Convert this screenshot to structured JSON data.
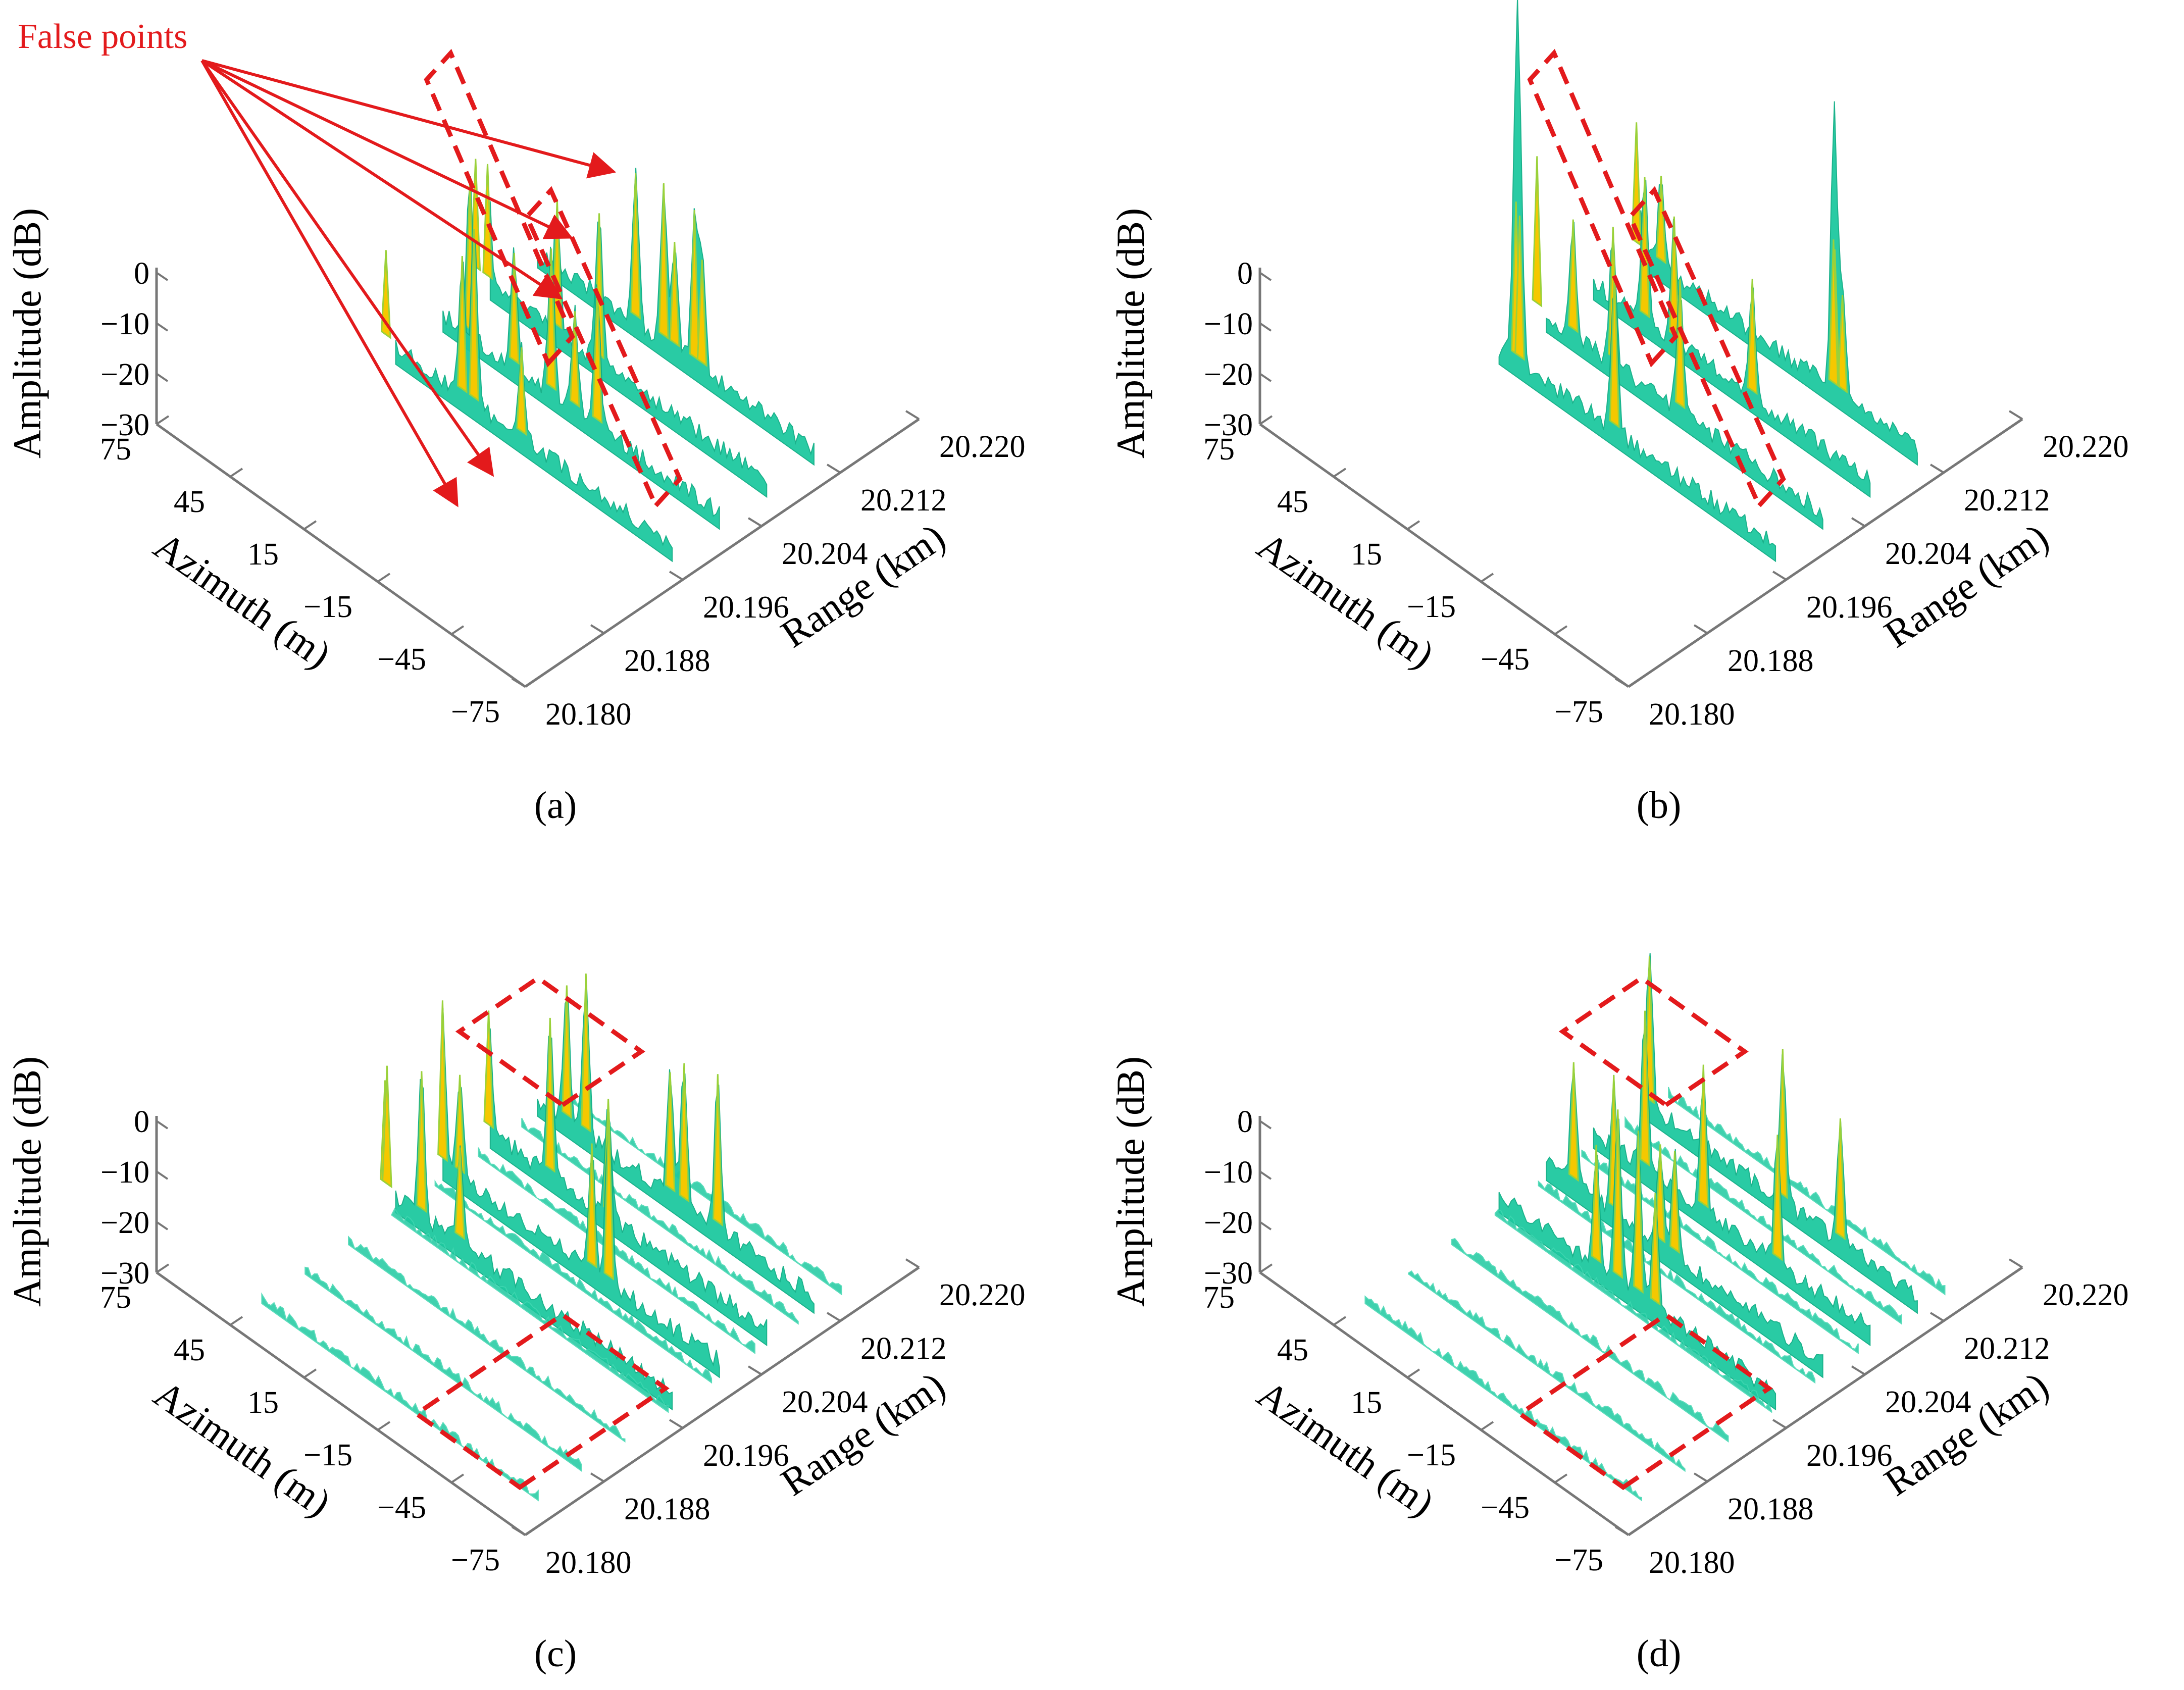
{
  "figure": {
    "annotation": "False points",
    "annotation_color": "#e31a1c",
    "box_color": "#e31a1c",
    "surface_low_color": "#1ec9a0",
    "surface_mid_color": "#9ad13a",
    "surface_peak_color": "#f5c800",
    "axis_color": "#777777"
  },
  "chart_data": [
    {
      "type": "surface3d",
      "panel_label": "(a)",
      "zlabel": "Amplitude (dB)",
      "xlabel": "Azimuth (m)",
      "ylabel": "Range (km)",
      "z_ticks": [
        "0",
        "−10",
        "−20",
        "−30"
      ],
      "x_ticks": [
        "75",
        "45",
        "15",
        "−15",
        "−45",
        "−75"
      ],
      "y_ticks": [
        "20.180",
        "20.188",
        "20.196",
        "20.204",
        "20.212",
        "20.220"
      ],
      "zlim": [
        -30,
        0
      ],
      "xlim": [
        -75,
        75
      ],
      "ylim": [
        20.18,
        20.22
      ],
      "rows": 4,
      "spurious_rows": 0,
      "false_points": true,
      "false_point_count": 5,
      "box_style": "diagonal"
    },
    {
      "type": "surface3d",
      "panel_label": "(b)",
      "zlabel": "Amplitude (dB)",
      "xlabel": "Azimuth (m)",
      "ylabel": "Range (km)",
      "z_ticks": [
        "0",
        "−10",
        "−20",
        "−30"
      ],
      "x_ticks": [
        "75",
        "45",
        "15",
        "−15",
        "−45",
        "−75"
      ],
      "y_ticks": [
        "20.180",
        "20.188",
        "20.196",
        "20.204",
        "20.212",
        "20.220"
      ],
      "zlim": [
        -30,
        0
      ],
      "xlim": [
        -75,
        75
      ],
      "ylim": [
        20.18,
        20.22
      ],
      "rows": 4,
      "spurious_rows": 0,
      "false_points": false,
      "box_style": "diagonal"
    },
    {
      "type": "surface3d",
      "panel_label": "(c)",
      "zlabel": "Amplitude (dB)",
      "xlabel": "Azimuth (m)",
      "ylabel": "Range (km)",
      "z_ticks": [
        "0",
        "−10",
        "−20",
        "−30"
      ],
      "x_ticks": [
        "75",
        "45",
        "15",
        "−15",
        "−45",
        "−75"
      ],
      "y_ticks": [
        "20.180",
        "20.188",
        "20.196",
        "20.204",
        "20.212",
        "20.220"
      ],
      "zlim": [
        -30,
        0
      ],
      "xlim": [
        -75,
        75
      ],
      "ylim": [
        20.18,
        20.22
      ],
      "rows": 4,
      "spurious_rows": 8,
      "false_points": false,
      "box_style": "rhombus"
    },
    {
      "type": "surface3d",
      "panel_label": "(d)",
      "zlabel": "Amplitude (dB)",
      "xlabel": "Azimuth (m)",
      "ylabel": "Range (km)",
      "z_ticks": [
        "0",
        "−10",
        "−20",
        "−30"
      ],
      "x_ticks": [
        "75",
        "45",
        "15",
        "−15",
        "−45",
        "−75"
      ],
      "y_ticks": [
        "20.180",
        "20.188",
        "20.196",
        "20.204",
        "20.212",
        "20.220"
      ],
      "zlim": [
        -30,
        0
      ],
      "xlim": [
        -75,
        75
      ],
      "ylim": [
        20.18,
        20.22
      ],
      "rows": 4,
      "spurious_rows": 8,
      "false_points": false,
      "box_style": "rhombus"
    }
  ]
}
